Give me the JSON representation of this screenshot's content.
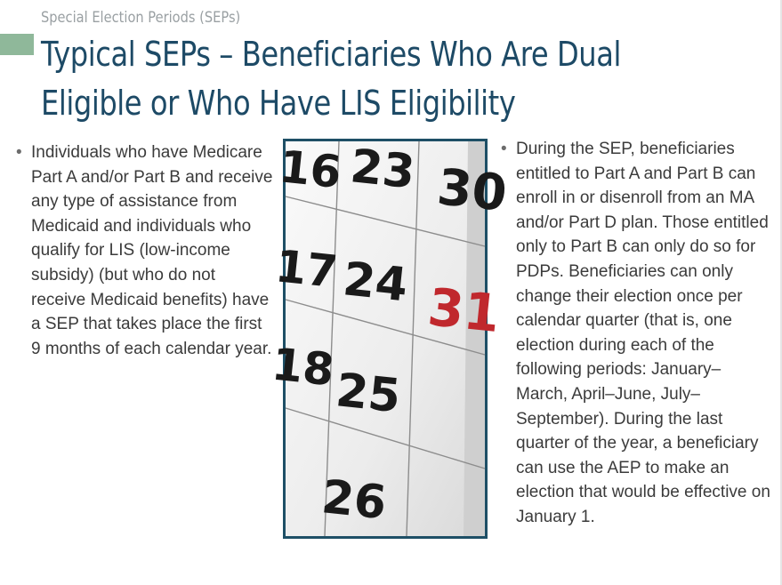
{
  "header": {
    "section_label": "Special Election Periods (SEPs)",
    "title": "Typical SEPs – Beneficiaries Who Are Dual Eligible or Who Have LIS Eligibility"
  },
  "left_column": {
    "bullets": [
      "Individuals who have Medicare Part A and/or Part B and receive any type of assistance from Medicaid and individuals who qualify for LIS (low-income subsidy) (but who do not receive Medicaid benefits) have a SEP that takes place the first 9 months of each calendar year."
    ]
  },
  "right_column": {
    "bullets": [
      "During the SEP, beneficiaries entitled to Part A and Part B can enroll in or disenroll from an MA and/or Part D plan. Those entitled only to Part B can only do so for PDPs. Beneficiaries can only change their election once per calendar quarter (that is, one election during each of the following periods: January–March, April–June, July–September). During the last quarter of the year, a beneficiary can use the AEP to make an election that would be effective on January 1."
    ]
  },
  "calendar_image": {
    "numbers": [
      "16",
      "23",
      "30",
      "17",
      "24",
      "31",
      "18",
      "25",
      "26"
    ],
    "highlight_color": "#c0282d",
    "frame_color": "#1e4f66"
  },
  "bullet_glyph": "•",
  "colors": {
    "title": "#1d4a66",
    "section_label": "#9aa0a3",
    "body_text": "#3b3b3b",
    "accent_bar": "#8fb89a"
  }
}
